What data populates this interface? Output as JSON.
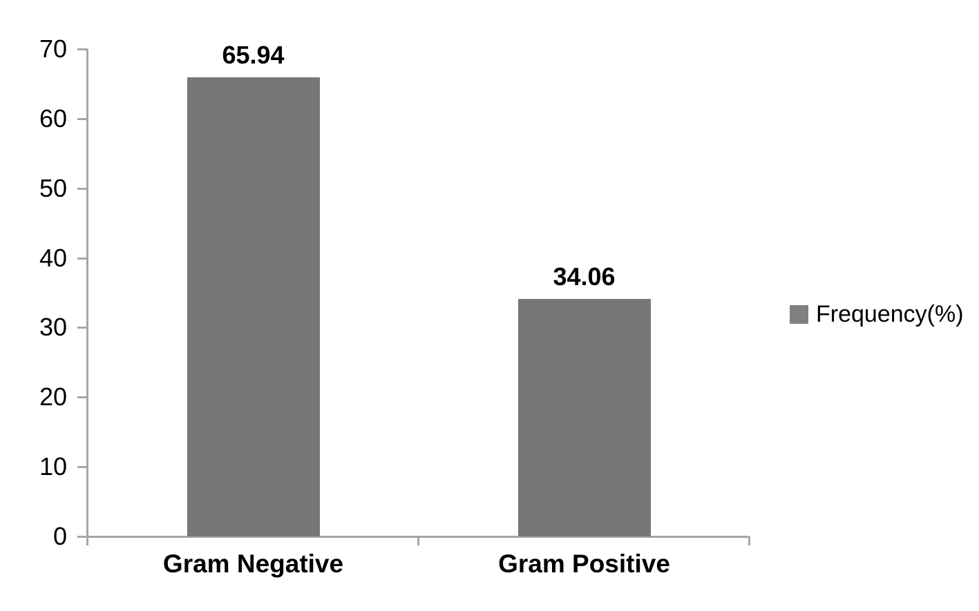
{
  "chart_data": {
    "type": "bar",
    "categories": [
      "Gram Negative",
      "Gram Positive"
    ],
    "series": [
      {
        "name": "Frequency(%)",
        "values": [
          65.94,
          34.06
        ]
      }
    ],
    "data_labels": [
      "65.94",
      "34.06"
    ],
    "title": "",
    "xlabel": "",
    "ylabel": "",
    "ylim": [
      0,
      70
    ],
    "yticks": [
      0,
      10,
      20,
      30,
      40,
      50,
      60,
      70
    ],
    "grid": false,
    "legend_position": "right"
  },
  "legend": {
    "label": "Frequency(%)"
  },
  "colors": {
    "bar": "#777777",
    "legend_swatch": "#808080",
    "axis": "#a6a6a6",
    "text": "#000000",
    "background": "#ffffff"
  }
}
